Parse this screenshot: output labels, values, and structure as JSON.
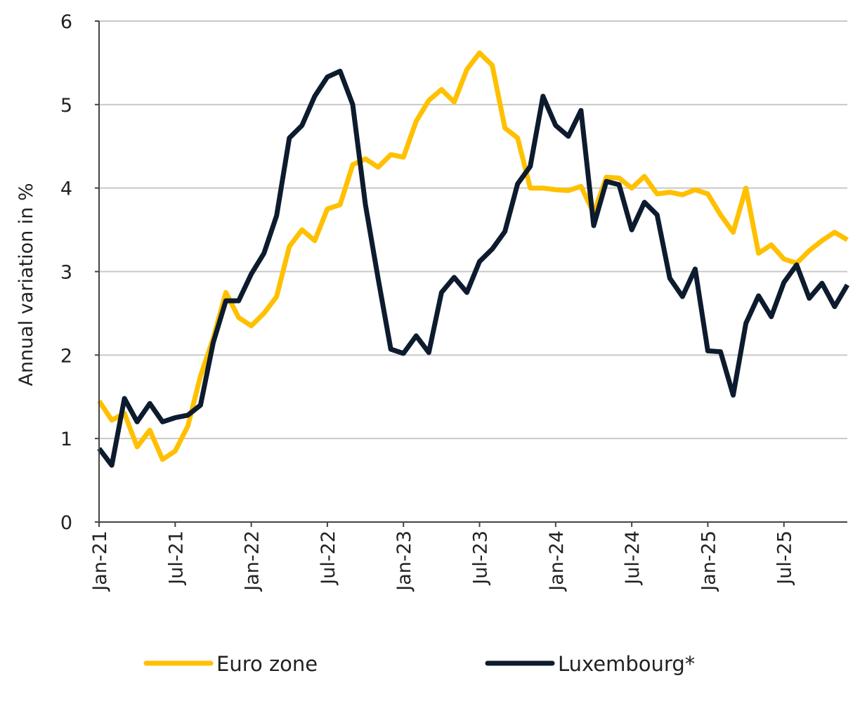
{
  "chart_data": {
    "type": "line",
    "title": "",
    "xlabel": "",
    "ylabel": "Annual variation in %",
    "ylim": [
      0,
      6
    ],
    "yticks": [
      "0",
      "1",
      "2",
      "3",
      "4",
      "5",
      "6"
    ],
    "grid": true,
    "legend_position": "bottom",
    "x_start": "Jan-21",
    "x_end": "Dec-25",
    "xtick_labels": [
      "Jan-21",
      "Jul-21",
      "Jan-22",
      "Jul-22",
      "Jan-23",
      "Jul-23",
      "Jan-24",
      "Jul-24",
      "Jan-25",
      "Jul-25"
    ],
    "series": [
      {
        "name": "Euro zone",
        "color": "#FFC000",
        "values": [
          1.45,
          1.22,
          1.3,
          0.9,
          1.1,
          0.75,
          0.85,
          1.15,
          1.75,
          2.2,
          2.75,
          2.45,
          2.35,
          2.5,
          2.7,
          3.3,
          3.5,
          3.37,
          3.75,
          3.8,
          4.28,
          4.35,
          4.25,
          4.4,
          4.37,
          4.8,
          5.05,
          5.18,
          5.03,
          5.42,
          5.62,
          5.47,
          4.72,
          4.6,
          4.0,
          4.0,
          3.98,
          3.97,
          4.02,
          3.7,
          4.13,
          4.12,
          4.0,
          4.14,
          3.93,
          3.95,
          3.92,
          3.98,
          3.93,
          3.68,
          3.47,
          4.0,
          3.22,
          3.32,
          3.15,
          3.1,
          3.25,
          3.37,
          3.47,
          3.38
        ]
      },
      {
        "name": "Luxembourg*",
        "color": "#0D1B2E",
        "values": [
          0.88,
          0.68,
          1.48,
          1.2,
          1.42,
          1.2,
          1.25,
          1.28,
          1.4,
          2.15,
          2.65,
          2.65,
          2.97,
          3.22,
          3.67,
          4.6,
          4.75,
          5.1,
          5.33,
          5.4,
          5.0,
          3.8,
          2.92,
          2.07,
          2.02,
          2.23,
          2.03,
          2.75,
          2.93,
          2.75,
          3.12,
          3.27,
          3.48,
          4.05,
          4.26,
          5.1,
          4.75,
          4.62,
          4.93,
          3.55,
          4.08,
          4.04,
          3.5,
          3.83,
          3.68,
          2.92,
          2.7,
          3.03,
          2.05,
          2.04,
          1.52,
          2.38,
          2.71,
          2.46,
          2.87,
          3.08,
          2.68,
          2.86,
          2.58,
          2.84
        ]
      }
    ]
  }
}
